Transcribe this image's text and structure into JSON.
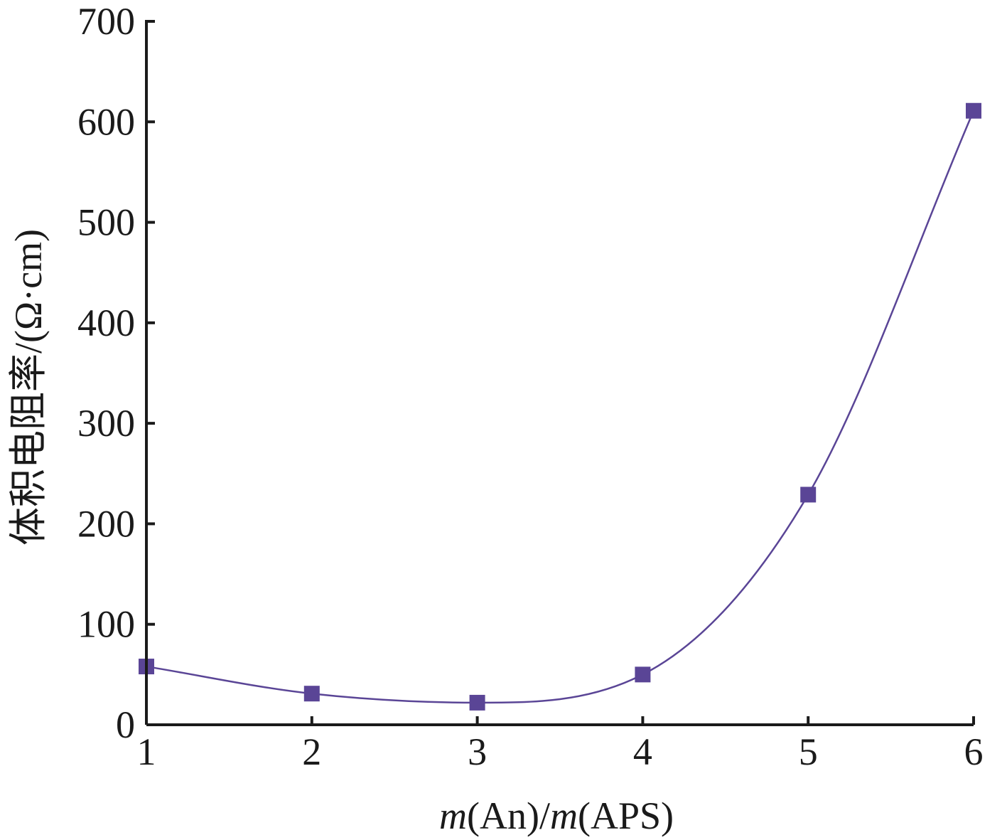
{
  "chart_data": {
    "type": "line",
    "title": "",
    "xlabel_parts": [
      {
        "text": "m",
        "italic": true
      },
      {
        "text": "(An)/",
        "italic": false
      },
      {
        "text": "m",
        "italic": true
      },
      {
        "text": "(APS)",
        "italic": false
      }
    ],
    "ylabel": "体积电阻率/(Ω·cm)",
    "xlim": [
      1,
      6
    ],
    "ylim": [
      0,
      700
    ],
    "xticks": [
      1,
      2,
      3,
      4,
      5,
      6
    ],
    "yticks": [
      0,
      100,
      200,
      300,
      400,
      500,
      600,
      700
    ],
    "grid": false,
    "series": [
      {
        "color": "#5a4596",
        "marker": "square",
        "x": [
          1,
          2,
          3,
          4,
          5,
          6
        ],
        "y": [
          58,
          31,
          22,
          50,
          229,
          611
        ]
      }
    ]
  }
}
